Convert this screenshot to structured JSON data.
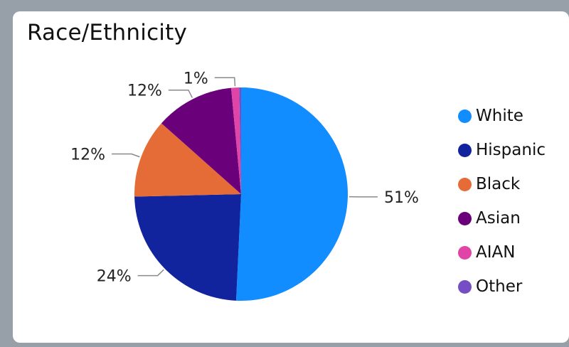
{
  "chart_data": {
    "type": "pie",
    "title": "Race/Ethnicity",
    "slices": [
      {
        "label": "White",
        "value": 51.0,
        "display": "51%",
        "color": "#118dff"
      },
      {
        "label": "Hispanic",
        "value": 24.0,
        "display": "24%",
        "color": "#12239e"
      },
      {
        "label": "Black",
        "value": 12.0,
        "display": "12%",
        "color": "#e66c37"
      },
      {
        "label": "Asian",
        "value": 12.0,
        "display": "12%",
        "color": "#6b007b"
      },
      {
        "label": "AIAN",
        "value": 1.2,
        "display": "1%",
        "color": "#e044a7"
      },
      {
        "label": "Other",
        "value": 0.3,
        "display": "",
        "color": "#744ec2"
      }
    ],
    "legend_placement": "right"
  }
}
